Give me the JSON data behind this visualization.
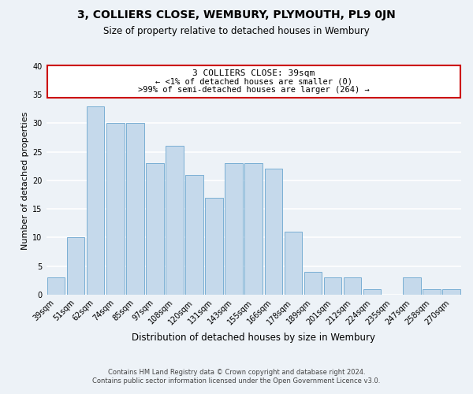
{
  "title": "3, COLLIERS CLOSE, WEMBURY, PLYMOUTH, PL9 0JN",
  "subtitle": "Size of property relative to detached houses in Wembury",
  "xlabel": "Distribution of detached houses by size in Wembury",
  "ylabel": "Number of detached properties",
  "bar_color": "#c5d9eb",
  "bar_edge_color": "#7aafd4",
  "categories": [
    "39sqm",
    "51sqm",
    "62sqm",
    "74sqm",
    "85sqm",
    "97sqm",
    "108sqm",
    "120sqm",
    "131sqm",
    "143sqm",
    "155sqm",
    "166sqm",
    "178sqm",
    "189sqm",
    "201sqm",
    "212sqm",
    "224sqm",
    "235sqm",
    "247sqm",
    "258sqm",
    "270sqm"
  ],
  "values": [
    3,
    10,
    33,
    30,
    30,
    23,
    26,
    21,
    17,
    23,
    23,
    22,
    11,
    4,
    3,
    3,
    1,
    0,
    3,
    1,
    1
  ],
  "ylim": [
    0,
    40
  ],
  "yticks": [
    0,
    5,
    10,
    15,
    20,
    25,
    30,
    35,
    40
  ],
  "annotation_title": "3 COLLIERS CLOSE: 39sqm",
  "annotation_line1": "← <1% of detached houses are smaller (0)",
  "annotation_line2": ">99% of semi-detached houses are larger (264) →",
  "annotation_box_color": "#ffffff",
  "annotation_box_edge_color": "#cc0000",
  "footer_line1": "Contains HM Land Registry data © Crown copyright and database right 2024.",
  "footer_line2": "Contains public sector information licensed under the Open Government Licence v3.0.",
  "background_color": "#edf2f7",
  "grid_color": "#ffffff",
  "title_fontsize": 10,
  "subtitle_fontsize": 8.5,
  "xlabel_fontsize": 8.5,
  "ylabel_fontsize": 8,
  "tick_fontsize": 7,
  "annotation_title_fontsize": 8,
  "annotation_text_fontsize": 7.5,
  "footer_fontsize": 6
}
